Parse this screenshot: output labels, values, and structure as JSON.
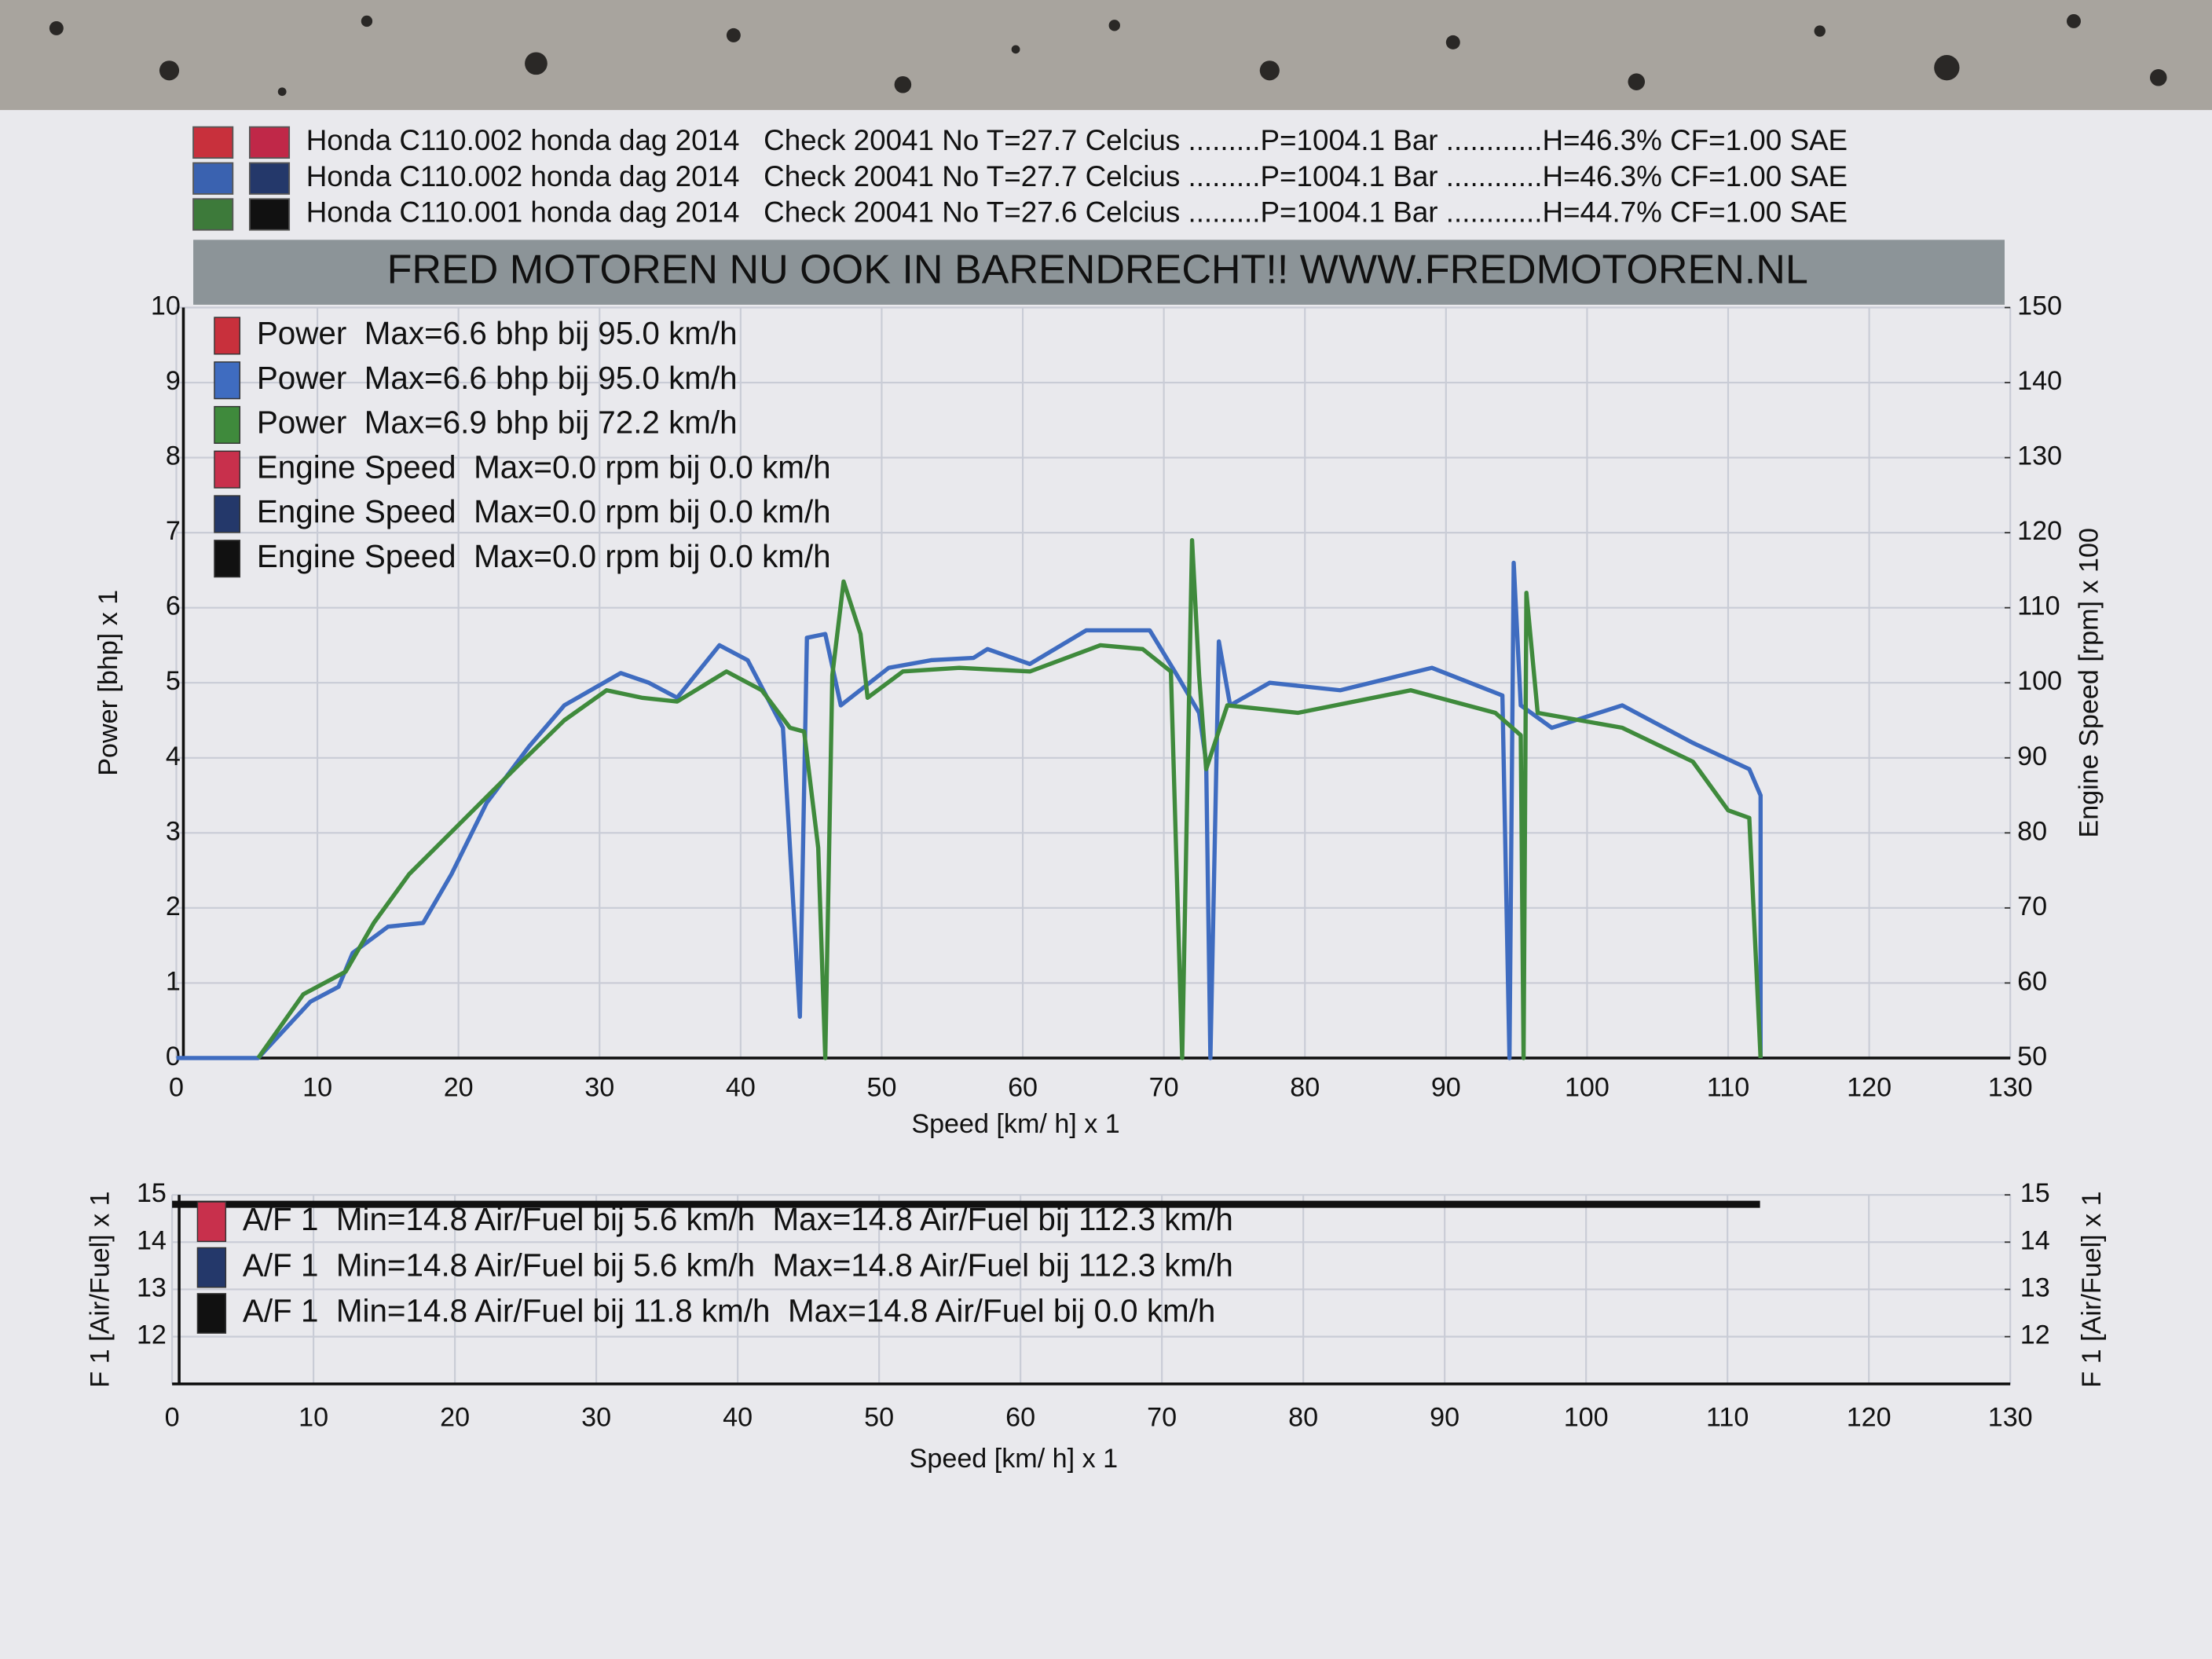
{
  "header": {
    "runs": [
      {
        "label": "Honda C110.002 honda dag 2014   Check 20041 No T=27.7 Celcius .........P=1004.1 Bar ............H=46.3% CF=1.00 SAE",
        "colors": [
          "#c8303c",
          "#c02848"
        ]
      },
      {
        "label": "Honda C110.002 honda dag 2014   Check 20041 No T=27.7 Celcius .........P=1004.1 Bar ............H=46.3% CF=1.00 SAE",
        "colors": [
          "#3a62b0",
          "#24386a"
        ]
      },
      {
        "label": "Honda C110.001 honda dag 2014   Check 20041 No T=27.6 Celcius .........P=1004.1 Bar ............H=44.7% CF=1.00 SAE",
        "colors": [
          "#3d7a3a",
          "#111111"
        ]
      }
    ],
    "banner": "FRED MOTOREN NU OOK IN BARENDRECHT!! WWW.FREDMOTOREN.NL"
  },
  "chart_data": [
    {
      "type": "line",
      "xlabel": "Speed [km/ h] x 1",
      "ylabel": "Power [bhp] x 1",
      "y2label": "Engine Speed [rpm] x 100",
      "xlim": [
        0,
        130
      ],
      "xticks": [
        0,
        10,
        20,
        30,
        40,
        50,
        60,
        70,
        80,
        90,
        100,
        110,
        120,
        130
      ],
      "ylim": [
        0,
        10
      ],
      "yticks": [
        0,
        1,
        2,
        3,
        4,
        5,
        6,
        7,
        8,
        9,
        10
      ],
      "y2lim": [
        50,
        150
      ],
      "y2ticks": [
        50,
        60,
        70,
        80,
        90,
        100,
        110,
        120,
        130,
        140,
        150
      ],
      "grid": true,
      "series": [
        {
          "name": "Power  Max=6.6 bhp bij 95.0 km/h",
          "color": "#c8303c"
        },
        {
          "name": "Power  Max=6.6 bhp bij 95.0 km/h",
          "color": "#3f6cc0",
          "x": [
            0,
            5.8,
            9.5,
            11.5,
            12.5,
            15,
            17.5,
            19.5,
            22,
            25,
            27.5,
            31.5,
            33.5,
            35.5,
            38.5,
            40.5,
            43,
            44.2,
            44.7,
            46,
            47.1,
            50.5,
            53.5,
            56.5,
            57.5,
            60.5,
            64.5,
            69,
            71,
            72.5,
            73,
            73.3,
            73.9,
            74.7,
            77.5,
            82.5,
            89,
            94,
            94.5,
            94.8,
            95.3,
            97.5,
            102.5,
            107.5,
            111.5,
            112.3,
            112.3
          ],
          "values": [
            0,
            0,
            0.75,
            0.95,
            1.4,
            1.75,
            1.8,
            2.45,
            3.4,
            4.15,
            4.7,
            5.13,
            5.0,
            4.8,
            5.5,
            5.3,
            4.4,
            0.55,
            5.6,
            5.65,
            4.7,
            5.2,
            5.3,
            5.33,
            5.45,
            5.25,
            5.7,
            5.7,
            5.08,
            4.6,
            3.95,
            0,
            5.55,
            4.7,
            5.0,
            4.9,
            5.2,
            4.83,
            0,
            6.6,
            4.7,
            4.4,
            4.7,
            4.2,
            3.85,
            3.5,
            0
          ]
        },
        {
          "name": "Power  Max=6.9 bhp bij 72.2 km/h",
          "color": "#3f8a3c",
          "x": [
            5.8,
            9,
            12,
            14,
            16.5,
            20.5,
            24.5,
            27.5,
            30.5,
            33,
            35.5,
            39,
            41.5,
            43.5,
            44.5,
            45.5,
            46,
            46.5,
            47.3,
            48.5,
            49,
            51.5,
            55.5,
            60.5,
            65.5,
            68.5,
            70.5,
            71.3,
            72,
            72.5,
            73,
            74.5,
            79.5,
            87.5,
            93.5,
            95.3,
            95.5,
            95.7,
            96.5,
            102.5,
            107.5,
            110,
            111.5,
            112.3
          ],
          "values": [
            0,
            0.85,
            1.15,
            1.8,
            2.45,
            3.2,
            3.95,
            4.5,
            4.9,
            4.8,
            4.75,
            5.15,
            4.9,
            4.4,
            4.35,
            2.8,
            0,
            5.1,
            6.35,
            5.65,
            4.8,
            5.15,
            5.2,
            5.15,
            5.5,
            5.45,
            5.15,
            0,
            6.9,
            5.1,
            3.85,
            4.7,
            4.6,
            4.9,
            4.6,
            4.3,
            0,
            6.2,
            4.6,
            4.4,
            3.95,
            3.3,
            3.2,
            0
          ]
        },
        {
          "name": "Engine Speed  Max=0.0 rpm bij 0.0 km/h",
          "color": "#c8304c"
        },
        {
          "name": "Engine Speed  Max=0.0 rpm bij 0.0 km/h",
          "color": "#24386a"
        },
        {
          "name": "Engine Speed  Max=0.0 rpm bij 0.0 km/h",
          "color": "#111111"
        }
      ]
    },
    {
      "type": "line",
      "xlabel": "Speed [km/ h] x 1",
      "ylabel": "F 1 [Air/Fuel] x 1",
      "y2label": "F 1 [Air/Fuel] x 1",
      "xlim": [
        0,
        130
      ],
      "xticks": [
        0,
        10,
        20,
        30,
        40,
        50,
        60,
        70,
        80,
        90,
        100,
        110,
        120,
        130
      ],
      "ylim": [
        11,
        15
      ],
      "yticks": [
        12,
        13,
        14,
        15
      ],
      "y2lim": [
        11,
        15
      ],
      "y2ticks": [
        12,
        13,
        14,
        15
      ],
      "grid": true,
      "series": [
        {
          "name": "A/F 1  Min=14.8 Air/Fuel bij 5.6 km/h  Max=14.8 Air/Fuel bij 112.3 km/h",
          "color": "#c8304c"
        },
        {
          "name": "A/F 1  Min=14.8 Air/Fuel bij 5.6 km/h  Max=14.8 Air/Fuel bij 112.3 km/h",
          "color": "#24386a"
        },
        {
          "name": "A/F 1  Min=14.8 Air/Fuel bij 11.8 km/h  Max=14.8 Air/Fuel bij 0.0 km/h",
          "color": "#111111",
          "x": [
            0,
            112.3
          ],
          "values": [
            14.8,
            14.8
          ]
        }
      ]
    }
  ]
}
